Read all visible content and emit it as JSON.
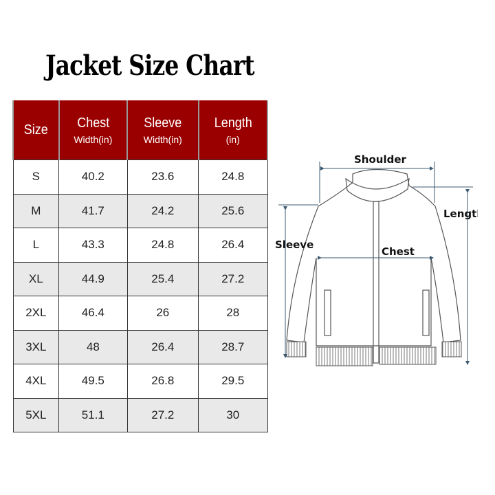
{
  "title": "Jacket Size Chart",
  "table": {
    "headers": [
      {
        "main": "Size",
        "sub": ""
      },
      {
        "main": "Chest",
        "sub": "Width(in)"
      },
      {
        "main": "Sleeve",
        "sub": "Width(in)"
      },
      {
        "main": "Length",
        "sub": "(in)"
      }
    ],
    "rows": [
      [
        "S",
        "40.2",
        "23.6",
        "24.8"
      ],
      [
        "M",
        "41.7",
        "24.2",
        "25.6"
      ],
      [
        "L",
        "43.3",
        "24.8",
        "26.4"
      ],
      [
        "XL",
        "44.9",
        "25.4",
        "27.2"
      ],
      [
        "2XL",
        "46.4",
        "26",
        "28"
      ],
      [
        "3XL",
        "48",
        "26.4",
        "28.7"
      ],
      [
        "4XL",
        "49.5",
        "26.8",
        "29.5"
      ],
      [
        "5XL",
        "51.1",
        "27.2",
        "30"
      ]
    ]
  },
  "diagram": {
    "shoulder": "Shoulder",
    "length": "Length",
    "sleeve": "Sleeve",
    "chest": "Chest"
  },
  "colors": {
    "header_bg": "#9b0000",
    "alt_row": "#e9e9e9",
    "arrow": "#3d5a70"
  }
}
